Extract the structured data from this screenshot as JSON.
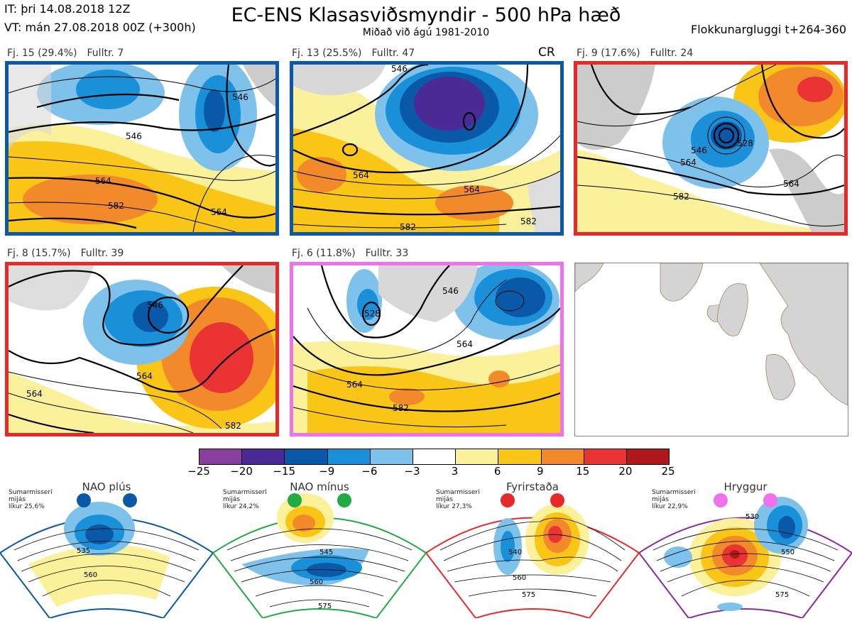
{
  "header": {
    "it": "IT: þri 14.08.2018 12Z",
    "vt": "VT: mán 27.08.2018 00Z  (+300h)",
    "title": "EC-ENS Klasasviðsmyndir - 500 hPa hæð",
    "subtitle": "Miðað við ágú 1981-2010",
    "window": "Flokkunargluggi t+264-360"
  },
  "panels": [
    {
      "cluster": "Fj. 15 (29.4%)",
      "members": "Fulltr. 7",
      "border": "#0b58a6",
      "contours": [
        "546",
        "546",
        "564",
        "582",
        "564"
      ]
    },
    {
      "cluster": "Fj. 13 (25.5%)",
      "members": "Fulltr. 47",
      "border": "#0b58a6",
      "tag": "CR",
      "contours": [
        "546",
        "564",
        "564",
        "582",
        "582"
      ]
    },
    {
      "cluster": "Fj. 9 (17.6%)",
      "members": "Fulltr. 24",
      "border": "#e62a2a",
      "contours": [
        "546",
        "528",
        "564",
        "582",
        "564"
      ]
    },
    {
      "cluster": "Fj. 8 (15.7%)",
      "members": "Fulltr. 39",
      "border": "#e62a2a",
      "contours": [
        "546",
        "564",
        "564",
        "582"
      ]
    },
    {
      "cluster": "Fj. 6 (11.8%)",
      "members": "Fulltr. 33",
      "border": "#ee72ee",
      "contours": [
        "546",
        "528",
        "564",
        "564",
        "582"
      ]
    }
  ],
  "colorbar": {
    "labels": [
      "−25",
      "−20",
      "−15",
      "−9",
      "−6",
      "−3",
      "3",
      "6",
      "9",
      "15",
      "20",
      "25"
    ],
    "colors": [
      "#8a3f9e",
      "#4b2a96",
      "#0a58a8",
      "#1990d8",
      "#7ec2ec",
      "#ffffff",
      "#fbf19a",
      "#f9c516",
      "#f28a2c",
      "#ea3333",
      "#b0171b"
    ]
  },
  "regimes": [
    {
      "name": "NAO plús",
      "note": [
        "Sumarmisseri",
        "mijás",
        "líkur 25,6%"
      ],
      "dot": "#0b58a6",
      "border": "#0b58a6",
      "contours": [
        "535",
        "560"
      ]
    },
    {
      "name": "NAO mínus",
      "note": [
        "Sumarmisseri",
        "mijás",
        "líkur 24,2%"
      ],
      "dot": "#22aa44",
      "border": "#22aa44",
      "contours": [
        "545",
        "560",
        "575"
      ]
    },
    {
      "name": "Fyrirstaða",
      "note": [
        "Sumarmisseri",
        "mijás",
        "líkur 27,3%"
      ],
      "dot": "#e62a2a",
      "border": "#e62a2a",
      "contours": [
        "540",
        "560",
        "575"
      ]
    },
    {
      "name": "Hryggur",
      "note": [
        "Sumarmisseri",
        "mijás",
        "líkur 22,9%"
      ],
      "dot": "#ee72ee",
      "border": "#8a2a9a",
      "contours": [
        "530",
        "550",
        "575"
      ]
    }
  ]
}
